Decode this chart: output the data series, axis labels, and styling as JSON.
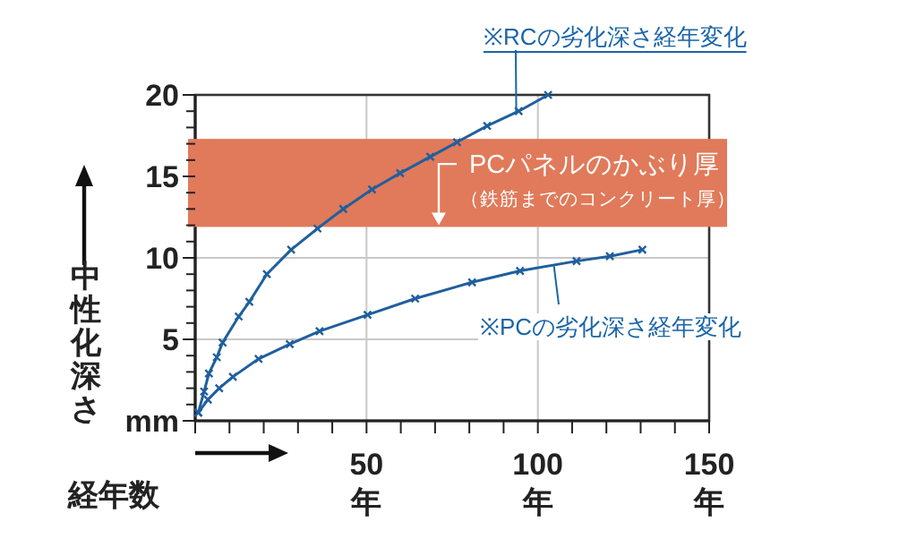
{
  "chart_data": {
    "type": "line",
    "ylabel": "中性化深さ",
    "xlabel": "経年数",
    "xlim": [
      0,
      150
    ],
    "ylim": [
      0,
      20
    ],
    "xticks": [
      {
        "value": 0,
        "label": null
      },
      {
        "value": 10,
        "label": null
      },
      {
        "value": 20,
        "label": null
      },
      {
        "value": 30,
        "label": null
      },
      {
        "value": 40,
        "label": null
      },
      {
        "value": 50,
        "label": "50\n年"
      },
      {
        "value": 60,
        "label": null
      },
      {
        "value": 70,
        "label": null
      },
      {
        "value": 80,
        "label": null
      },
      {
        "value": 90,
        "label": null
      },
      {
        "value": 100,
        "label": "100\n年"
      },
      {
        "value": 110,
        "label": null
      },
      {
        "value": 120,
        "label": null
      },
      {
        "value": 130,
        "label": null
      },
      {
        "value": 140,
        "label": null
      },
      {
        "value": 150,
        "label": "150\n年"
      }
    ],
    "yticks": [
      {
        "value": 0,
        "label": "mm"
      },
      {
        "value": 1,
        "label": null
      },
      {
        "value": 2,
        "label": null
      },
      {
        "value": 3,
        "label": null
      },
      {
        "value": 4,
        "label": null
      },
      5,
      {
        "value": 6,
        "label": null
      },
      {
        "value": 7,
        "label": null
      },
      {
        "value": 8,
        "label": null
      },
      {
        "value": 9,
        "label": null
      },
      10,
      {
        "value": 11,
        "label": null
      },
      {
        "value": 12,
        "label": null
      },
      {
        "value": 13,
        "label": null
      },
      {
        "value": 14,
        "label": null
      },
      15,
      {
        "value": 16,
        "label": null
      },
      {
        "value": 17,
        "label": null
      },
      {
        "value": 18,
        "label": null
      },
      {
        "value": 19,
        "label": null
      },
      20
    ],
    "grid": true,
    "marker": "cross",
    "line_style": "solid",
    "series": [
      {
        "color": "#1f5f9e",
        "x": [
          0.9,
          2.6,
          4,
          6.3,
          8,
          12.7,
          15.8,
          20.9,
          28,
          35.7,
          43.2,
          51.6,
          59.8,
          68.6,
          76.4,
          85.2,
          94.4,
          103
        ],
        "values": [
          0.5,
          1.8,
          2.9,
          3.9,
          4.8,
          6.4,
          7.3,
          9.0,
          10.5,
          11.8,
          13.0,
          14.2,
          15.2,
          16.2,
          17.1,
          18.1,
          19.0,
          20
        ]
      },
      {
        "color": "#1f5f9e",
        "x": [
          0.9,
          3.7,
          7,
          11,
          18.5,
          27.6,
          36.3,
          50.3,
          64.2,
          80.8,
          94.8,
          111.3,
          121,
          130.5
        ],
        "values": [
          0.5,
          1.3,
          2.0,
          2.7,
          3.8,
          4.7,
          5.5,
          6.5,
          7.5,
          8.5,
          9.2,
          9.8,
          10.1,
          10.5
        ]
      }
    ],
    "bands": [
      {
        "axis": "y",
        "from": 11.9,
        "to": 17.3,
        "label": "PCパネルのかぶり厚（鉄筋までのコンクリート厚）",
        "color": "#e07a5a"
      }
    ],
    "annotations": [
      {
        "text": "※RCの劣化深さ経年変化",
        "x": 93.7,
        "y": 19.0
      },
      {
        "text": "※PCの劣化深さ経年変化",
        "x": 104.7,
        "y": 9.5
      }
    ]
  }
}
